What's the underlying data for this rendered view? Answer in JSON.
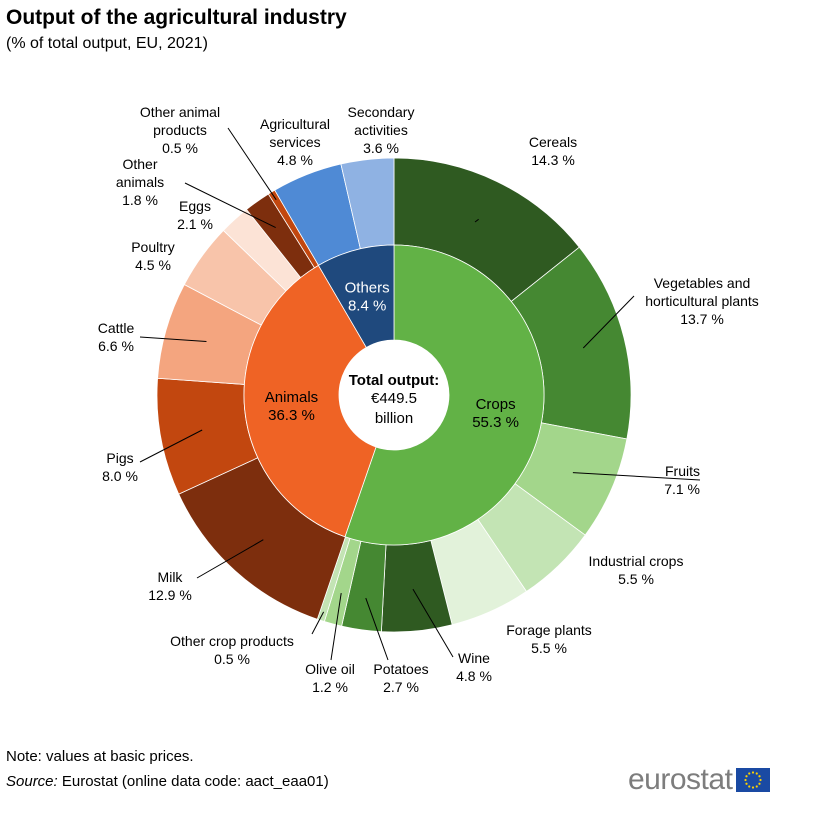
{
  "title": "Output of the agricultural industry",
  "subtitle": "(% of total output, EU, 2021)",
  "note": "Note: values at basic prices.",
  "source_label": "Source:",
  "source_text": "Eurostat (online data code: aact_eaa01)",
  "logo_text": "eurostat",
  "chart_data": {
    "type": "pie",
    "center_label": {
      "bold": "Total output:",
      "line2": "€449.5",
      "line3": "billion"
    },
    "inner": [
      {
        "name": "Crops",
        "value": 55.3,
        "value_label": "55.3 %",
        "color": "#62b246",
        "label_color": "#000000"
      },
      {
        "name": "Animals",
        "value": 36.3,
        "value_label": "36.3 %",
        "color": "#ef6325",
        "label_color": "#000000"
      },
      {
        "name": "Others",
        "value": 8.4,
        "value_label": "8.4 %",
        "color": "#1f497d",
        "label_color": "#ffffff"
      }
    ],
    "outer": [
      {
        "name": "Cereals",
        "value": 14.3,
        "value_label": "14.3 %",
        "color": "#2f5a21"
      },
      {
        "name": "Vegetables and horticultural plants",
        "value": 13.7,
        "value_label": "13.7 %",
        "color": "#458832"
      },
      {
        "name": "Fruits",
        "value": 7.1,
        "value_label": "7.1 %",
        "color": "#a3d68b"
      },
      {
        "name": "Industrial crops",
        "value": 5.5,
        "value_label": "5.5 %",
        "color": "#c3e4b4"
      },
      {
        "name": "Forage plants",
        "value": 5.5,
        "value_label": "5.5 %",
        "color": "#e2f2da"
      },
      {
        "name": "Wine",
        "value": 4.8,
        "value_label": "4.8 %",
        "color": "#2f5a21"
      },
      {
        "name": "Potatoes",
        "value": 2.7,
        "value_label": "2.7 %",
        "color": "#458832"
      },
      {
        "name": "Olive oil",
        "value": 1.2,
        "value_label": "1.2 %",
        "color": "#a3d68b"
      },
      {
        "name": "Other crop products",
        "value": 0.5,
        "value_label": "0.5 %",
        "color": "#c3e4b4"
      },
      {
        "name": "Milk",
        "value": 12.9,
        "value_label": "12.9 %",
        "color": "#7d2e0d"
      },
      {
        "name": "Pigs",
        "value": 8.0,
        "value_label": "8.0 %",
        "color": "#c2470f"
      },
      {
        "name": "Cattle",
        "value": 6.6,
        "value_label": "6.6 %",
        "color": "#f4a57f"
      },
      {
        "name": "Poultry",
        "value": 4.5,
        "value_label": "4.5 %",
        "color": "#f8c4aa"
      },
      {
        "name": "Eggs",
        "value": 2.1,
        "value_label": "2.1 %",
        "color": "#fce3d6"
      },
      {
        "name": "Other animals",
        "value": 1.8,
        "value_label": "1.8 %",
        "color": "#7d2e0d"
      },
      {
        "name": "Other animal products",
        "value": 0.5,
        "value_label": "0.5 %",
        "color": "#c2470f"
      },
      {
        "name": "Agricultural services",
        "value": 4.8,
        "value_label": "4.8 %",
        "color": "#4f8ad5"
      },
      {
        "name": "Secondary activities",
        "value": 3.6,
        "value_label": "3.6 %",
        "color": "#8fb2e3"
      }
    ]
  }
}
